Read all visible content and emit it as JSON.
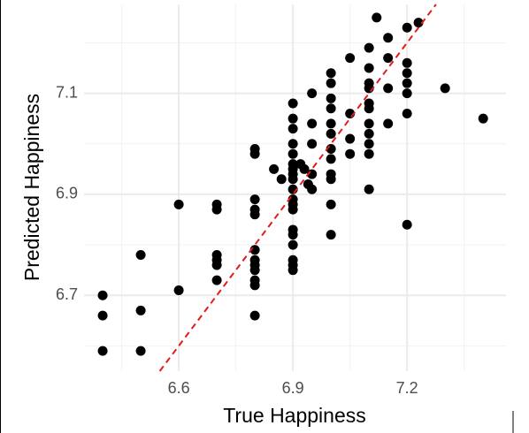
{
  "chart_data": {
    "type": "scatter",
    "x_label": "True Happiness",
    "y_label": "Predicted Happiness",
    "x": [
      6.4,
      6.4,
      6.4,
      6.5,
      6.5,
      6.5,
      6.6,
      6.6,
      6.7,
      6.7,
      6.7,
      6.7,
      6.7,
      6.7,
      6.8,
      6.8,
      6.8,
      6.8,
      6.8,
      6.8,
      6.8,
      6.8,
      6.8,
      6.8,
      6.8,
      6.8,
      6.85,
      6.87,
      6.9,
      6.9,
      6.9,
      6.9,
      6.9,
      6.9,
      6.9,
      6.9,
      6.9,
      6.9,
      6.9,
      6.9,
      6.9,
      6.9,
      6.9,
      6.9,
      6.9,
      6.9,
      6.9,
      6.92,
      6.93,
      6.94,
      6.95,
      6.95,
      6.95,
      6.95,
      6.95,
      7.0,
      7.0,
      7.0,
      7.0,
      7.0,
      7.0,
      7.0,
      7.0,
      7.0,
      7.0,
      7.0,
      7.0,
      7.05,
      7.05,
      7.05,
      7.05,
      7.1,
      7.1,
      7.1,
      7.1,
      7.1,
      7.1,
      7.1,
      7.1,
      7.1,
      7.1,
      7.1,
      7.15,
      7.15,
      7.15,
      7.15,
      7.2,
      7.2,
      7.2,
      7.2,
      7.2,
      7.2,
      7.2,
      7.12,
      7.23,
      7.3,
      7.4
    ],
    "values": [
      6.7,
      6.66,
      6.59,
      6.78,
      6.67,
      6.59,
      6.88,
      6.71,
      6.88,
      6.87,
      6.78,
      6.77,
      6.76,
      6.73,
      6.99,
      6.98,
      6.89,
      6.87,
      6.86,
      6.79,
      6.77,
      6.76,
      6.75,
      6.73,
      6.72,
      6.66,
      6.95,
      6.93,
      7.08,
      7.05,
      7.03,
      7.0,
      6.98,
      6.96,
      6.95,
      6.94,
      6.93,
      6.91,
      6.89,
      6.88,
      6.87,
      6.83,
      6.82,
      6.8,
      6.77,
      6.76,
      6.75,
      6.96,
      6.95,
      6.92,
      7.1,
      7.04,
      7.0,
      6.94,
      6.91,
      7.14,
      7.12,
      7.09,
      7.07,
      7.04,
      7.02,
      6.99,
      6.97,
      6.94,
      6.93,
      6.88,
      6.82,
      7.17,
      7.06,
      7.01,
      6.98,
      7.19,
      7.15,
      7.12,
      7.11,
      7.08,
      7.07,
      7.04,
      7.02,
      7.0,
      6.98,
      6.91,
      7.21,
      7.17,
      7.11,
      7.04,
      7.23,
      7.16,
      7.14,
      7.12,
      7.1,
      7.06,
      6.84,
      7.25,
      7.24,
      7.11,
      7.05
    ],
    "color": "#000000",
    "xlim": [
      6.351,
      7.46
    ],
    "ylim": [
      6.55,
      7.276
    ],
    "xticks": [
      6.6,
      6.9,
      7.2
    ],
    "yticks": [
      6.7,
      6.9,
      7.1
    ],
    "grid": true,
    "identity_line": true,
    "identity_color": "#e41a1c"
  }
}
